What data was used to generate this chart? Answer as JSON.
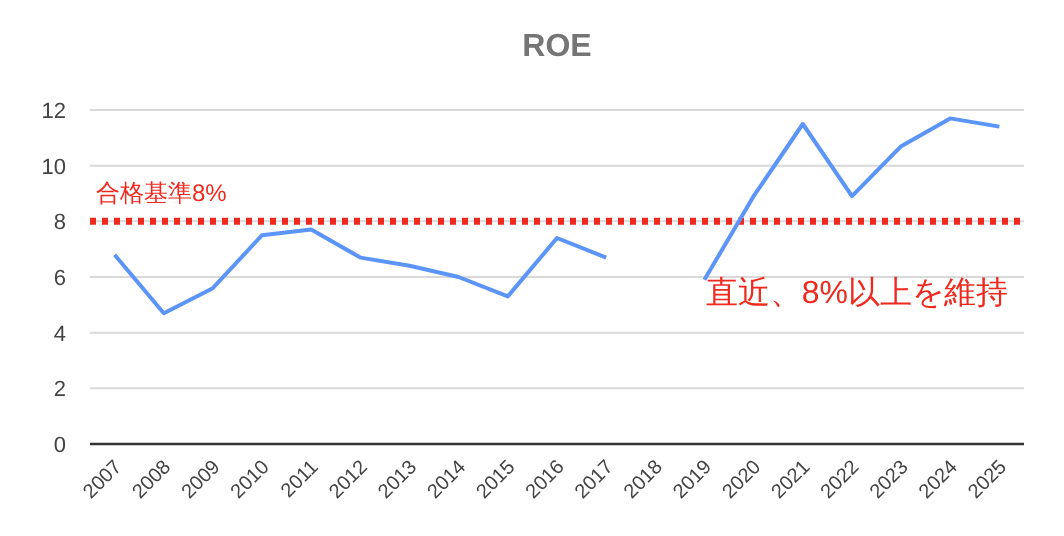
{
  "chart_data": {
    "type": "line",
    "title": "ROE",
    "categories": [
      "2007",
      "2008",
      "2009",
      "2010",
      "2011",
      "2012",
      "2013",
      "2014",
      "2015",
      "2016",
      "2017",
      "2018",
      "2019",
      "2020",
      "2021",
      "2022",
      "2023",
      "2024",
      "2025"
    ],
    "series": [
      {
        "color": "#5b95f9",
        "values": [
          6.8,
          4.7,
          5.6,
          7.5,
          7.7,
          6.7,
          6.4,
          6.0,
          5.3,
          7.4,
          6.7,
          null,
          5.9,
          8.9,
          11.5,
          8.9,
          10.7,
          11.7,
          11.4
        ]
      }
    ],
    "ylim": [
      0,
      12
    ],
    "yticks": [
      0,
      2,
      4,
      6,
      8,
      10,
      12
    ],
    "grid": "y",
    "marker": "none",
    "line_style": "solid",
    "ref_lines": [
      {
        "axis": "y",
        "value": 8,
        "label": "合格基準8%",
        "color": "#f0281e",
        "line_style": "dotted"
      }
    ],
    "annotations": [
      "直近、8%以上を維持"
    ]
  }
}
